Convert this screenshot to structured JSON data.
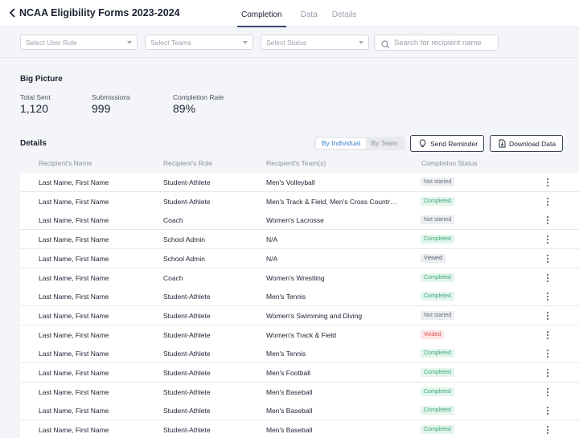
{
  "header": {
    "title": "NCAA Eligibility Forms 2023-2024",
    "tabs": [
      "Completion",
      "Data",
      "Details"
    ],
    "active_tab": "Completion"
  },
  "filters": {
    "user_role": "Select User Role",
    "teams": "Select Teams",
    "status": "Select Status",
    "search_placeholder": "Search for recipient name"
  },
  "big_picture": {
    "title": "Big Picture",
    "stats": [
      {
        "label": "Total Sent",
        "value": "1,120"
      },
      {
        "label": "Submissions",
        "value": "999"
      },
      {
        "label": "Completion Rate",
        "value": "89%"
      }
    ]
  },
  "details": {
    "title": "Details",
    "view_toggle": [
      "By Individual",
      "By Team"
    ],
    "active_view": "By Individual",
    "send_reminder": "Send Reminder",
    "download_data": "Download Data",
    "columns": [
      "Recipient's Name",
      "Recipient's Role",
      "Recipient's Team(s)",
      "Completion Status"
    ],
    "rows": [
      {
        "name": "Last Name, First Name",
        "role": "Student-Athlete",
        "team": "Men's Volleyball",
        "status": "Not started"
      },
      {
        "name": "Last Name, First Name",
        "role": "Student-Athlete",
        "team": "Men's Track & Field, Men's Cross Country, M...",
        "status": "Completed"
      },
      {
        "name": "Last Name, First Name",
        "role": "Coach",
        "team": "Women's Lacrosse",
        "status": "Not started"
      },
      {
        "name": "Last Name, First Name",
        "role": "School Admin",
        "team": "N/A",
        "status": "Completed"
      },
      {
        "name": "Last Name, First Name",
        "role": "School Admin",
        "team": "N/A",
        "status": "Viewed"
      },
      {
        "name": "Last Name, First Name",
        "role": "Coach",
        "team": "Women's Wrestling",
        "status": "Completed"
      },
      {
        "name": "Last Name, First Name",
        "role": "Student-Athlete",
        "team": "Men's Tennis",
        "status": "Completed"
      },
      {
        "name": "Last Name, First Name",
        "role": "Student-Athlete",
        "team": "Women's Swimming and Diving",
        "status": "Not started"
      },
      {
        "name": "Last Name, First Name",
        "role": "Student-Athlete",
        "team": "Women's Track & Field",
        "status": "Voided"
      },
      {
        "name": "Last Name, First Name",
        "role": "Student-Athlete",
        "team": "Men's Tennis",
        "status": "Completed"
      },
      {
        "name": "Last Name, First Name",
        "role": "Student-Athlete",
        "team": "Men's Football",
        "status": "Completed"
      },
      {
        "name": "Last Name, First Name",
        "role": "Student-Athlete",
        "team": "Men's Baseball",
        "status": "Completed"
      },
      {
        "name": "Last Name, First Name",
        "role": "Student-Athlete",
        "team": "Men's Baseball",
        "status": "Completed"
      },
      {
        "name": "Last Name, First Name",
        "role": "Student-Athlete",
        "team": "Men's Baseball",
        "status": "Completed"
      }
    ]
  },
  "icons": {
    "back": "chevron-left-icon",
    "search": "search-icon",
    "reminder": "bulb-icon",
    "download": "file-download-icon",
    "row_menu": "kebab-menu-icon"
  },
  "status_colors": {
    "Completed": {
      "bg": "#e3f5ec",
      "fg": "#3caa78"
    },
    "Not started": {
      "bg": "#eceef2",
      "fg": "#6b7180"
    },
    "Viewed": {
      "bg": "#eceef2",
      "fg": "#555b69"
    },
    "Voided": {
      "bg": "#fde6e6",
      "fg": "#d9534f"
    }
  },
  "colors": {
    "accent": "#3d7fcf",
    "tab_underline": "#3a4a6b",
    "background": "#f4f5f8"
  }
}
